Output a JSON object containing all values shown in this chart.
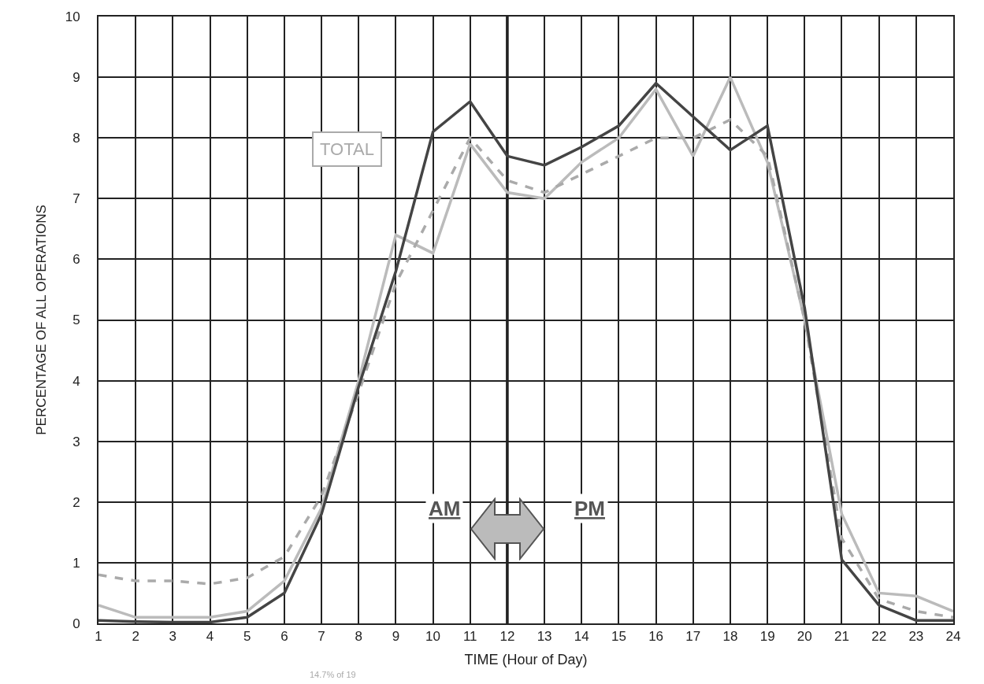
{
  "chart_data": {
    "type": "line",
    "xlabel": "TIME (Hour of Day)",
    "ylabel": "PERCENTAGE OF ALL OPERATIONS",
    "annotations": [
      "TOTAL",
      "AM",
      "PM",
      "14.7% of 19"
    ],
    "x": [
      1,
      2,
      3,
      4,
      5,
      6,
      7,
      8,
      9,
      10,
      11,
      12,
      13,
      14,
      15,
      16,
      17,
      18,
      19,
      20,
      21,
      22,
      23,
      24
    ],
    "series": [
      {
        "color": "#bbbbbb",
        "line_style": "solid",
        "values": [
          0.3,
          0.1,
          0.1,
          0.1,
          0.2,
          0.7,
          1.9,
          4.0,
          6.4,
          6.1,
          7.9,
          7.1,
          7.0,
          7.6,
          8.0,
          8.8,
          7.7,
          9.0,
          7.6,
          5.0,
          1.8,
          0.5,
          0.45,
          0.2
        ]
      },
      {
        "color": "#aaaaaa",
        "line_style": "dashed",
        "values": [
          0.8,
          0.7,
          0.7,
          0.65,
          0.75,
          1.1,
          2.1,
          3.8,
          5.6,
          6.8,
          8.0,
          7.3,
          7.1,
          7.4,
          7.7,
          8.0,
          8.0,
          8.3,
          7.7,
          5.0,
          1.4,
          0.4,
          0.2,
          0.1
        ]
      },
      {
        "color": "#444444",
        "line_style": "solid",
        "values": [
          0.05,
          0.03,
          0.02,
          0.02,
          0.1,
          0.5,
          1.8,
          3.9,
          5.8,
          8.1,
          8.6,
          7.7,
          7.55,
          7.85,
          8.2,
          8.9,
          8.35,
          7.8,
          8.2,
          5.2,
          1.05,
          0.3,
          0.05,
          0.05
        ]
      }
    ],
    "xlim": [
      1,
      24
    ],
    "xticks": [
      1,
      2,
      3,
      4,
      5,
      6,
      7,
      8,
      9,
      10,
      11,
      12,
      13,
      14,
      15,
      16,
      17,
      18,
      19,
      20,
      21,
      22,
      23,
      24
    ],
    "ylim": [
      0,
      10
    ],
    "yticks": [
      0,
      1,
      2,
      3,
      4,
      5,
      6,
      7,
      8,
      9,
      10
    ],
    "ref_lines": [
      {
        "axis": "x",
        "value": 12
      }
    ],
    "grid": true,
    "marker": "none"
  }
}
